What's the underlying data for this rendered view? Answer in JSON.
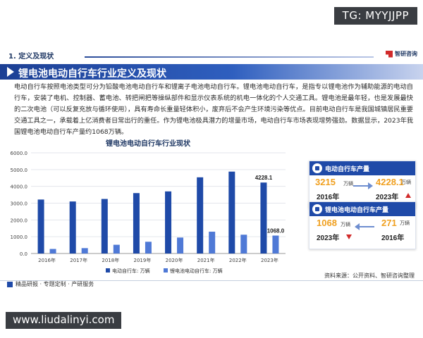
{
  "overlay": {
    "tg_tag": "TG: MYYJJPP",
    "url_tag": "www.liudalinyi.com"
  },
  "section": {
    "label": "1. 定义及现状",
    "brand": "智研咨询"
  },
  "title": "锂电池电动自行车行业定义及现状",
  "body": "电动自行车按照电池类型可分为铅酸电池电动自行车和锂离子电池电动自行车。锂电池电动自行车，是指专以锂电池作为辅助能源的电动自行车，安装了电机、控制器、蓄电池、转把闸把等操纵部件和显示仪表系统的机电一体化的个人交通工具。锂电池是最年轻，也是发展最快的二次电池（可以反复充放与循环使用），具有寿命长重量轻体积小，废弃后不会产生环境污染等优点。目前电动自行车是我国城镇居民重要交通工具之一，承载着上亿消费者日常出行的重任。作为锂电池极具潜力的增量市场，电动自行车市场表现增势强劲。数据显示，2023年我国锂电池电动自行车产量约1068万辆。",
  "chart_data": {
    "type": "bar",
    "title": "锂电池电动自行车行业现状",
    "categories": [
      "2016年",
      "2017年",
      "2018年",
      "2019年",
      "2020年",
      "2021年",
      "2022年",
      "2023年"
    ],
    "series": [
      {
        "name": "电动自行车: 万辆",
        "color": "#1f4aa8",
        "values": [
          3215,
          3100,
          3250,
          3600,
          3700,
          4540,
          4880,
          4228.1
        ]
      },
      {
        "name": "锂电池电动自行车: 万辆",
        "color": "#4f79d6",
        "values": [
          271,
          320,
          520,
          700,
          950,
          1300,
          1120,
          1068
        ]
      }
    ],
    "ylim": [
      0,
      6000
    ],
    "yticks": [
      "0.0",
      "1000.0",
      "2000.0",
      "3000.0",
      "4000.0",
      "5000.0",
      "6000.0"
    ],
    "grid": true,
    "legend": "bottom",
    "data_labels": [
      {
        "series": 0,
        "index": 7,
        "text": "4228.1"
      },
      {
        "series": 1,
        "index": 7,
        "text": "1068.0"
      }
    ]
  },
  "cards": [
    {
      "title": "电动自行车产量",
      "left_value": "3215",
      "left_unit": "万辆",
      "left_year": "2016年",
      "right_value": "4228.1",
      "right_unit": "万辆",
      "right_year": "2023年"
    },
    {
      "title": "锂电池电动自行车产量",
      "left_value": "1068",
      "left_unit": "万辆",
      "left_year": "2023年",
      "right_value": "271",
      "right_unit": "万辆",
      "right_year": "2016年"
    }
  ],
  "source": "资料来源：公开资料、智研咨询整理",
  "footer": "精品研报 · 专题定制 · 产研服务"
}
